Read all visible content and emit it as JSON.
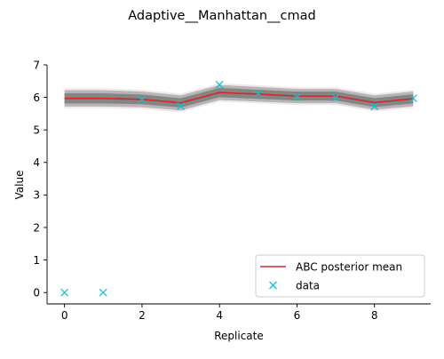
{
  "chart_data": {
    "type": "line",
    "title": "Adaptive__Manhattan__cmad",
    "xlabel": "Replicate",
    "ylabel": "Value",
    "xlim": [
      -0.45,
      9.45
    ],
    "ylim": [
      -0.35,
      7.0
    ],
    "x_ticks": [
      0,
      2,
      4,
      6,
      8
    ],
    "y_ticks": [
      0,
      1,
      2,
      3,
      4,
      5,
      6,
      7
    ],
    "grid": false,
    "legend_position": "bottom-right",
    "x": [
      0,
      1,
      2,
      3,
      4,
      5,
      6,
      7,
      8,
      9
    ],
    "band_lower": [
      5.72,
      5.72,
      5.7,
      5.6,
      5.92,
      5.87,
      5.82,
      5.82,
      5.62,
      5.73
    ],
    "band_upper": [
      6.22,
      6.22,
      6.18,
      6.06,
      6.38,
      6.32,
      6.26,
      6.26,
      6.06,
      6.18
    ],
    "series": [
      {
        "name": "ABC posterior mean",
        "style": "line",
        "color": "#d62728",
        "x": [
          0,
          1,
          2,
          3,
          4,
          5,
          6,
          7,
          8,
          9
        ],
        "values": [
          5.97,
          5.97,
          5.94,
          5.83,
          6.15,
          6.1,
          6.04,
          6.04,
          5.84,
          5.96
        ]
      },
      {
        "name": "data",
        "style": "marker-x",
        "color": "#17becf",
        "x": [
          0,
          1,
          2,
          3,
          4,
          5,
          6,
          7,
          8,
          9
        ],
        "values": [
          0.0,
          0.0,
          5.93,
          5.73,
          6.39,
          6.12,
          6.01,
          5.99,
          5.72,
          5.97
        ]
      }
    ]
  }
}
